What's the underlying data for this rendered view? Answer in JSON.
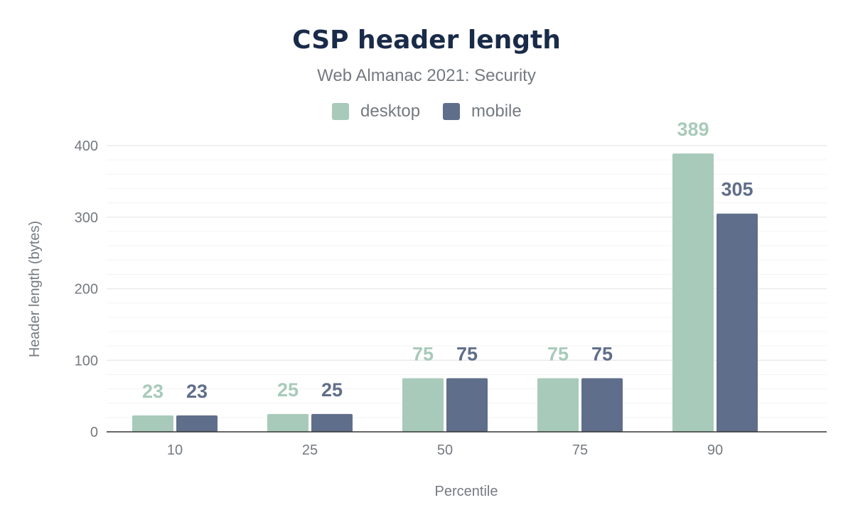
{
  "chart_data": {
    "type": "bar",
    "title": "CSP header length",
    "subtitle": "Web Almanac 2021: Security",
    "xlabel": "Percentile",
    "ylabel": "Header length (bytes)",
    "categories": [
      "10",
      "25",
      "50",
      "75",
      "90"
    ],
    "series": [
      {
        "name": "desktop",
        "color": "#a8cabb",
        "values": [
          23,
          25,
          75,
          75,
          389
        ]
      },
      {
        "name": "mobile",
        "color": "#5f6e8a",
        "values": [
          23,
          25,
          75,
          75,
          305
        ]
      }
    ],
    "ylim": [
      0,
      400
    ],
    "yticks": [
      "0",
      "100",
      "200",
      "300",
      "400"
    ],
    "grid": true,
    "legend": "top-center"
  }
}
